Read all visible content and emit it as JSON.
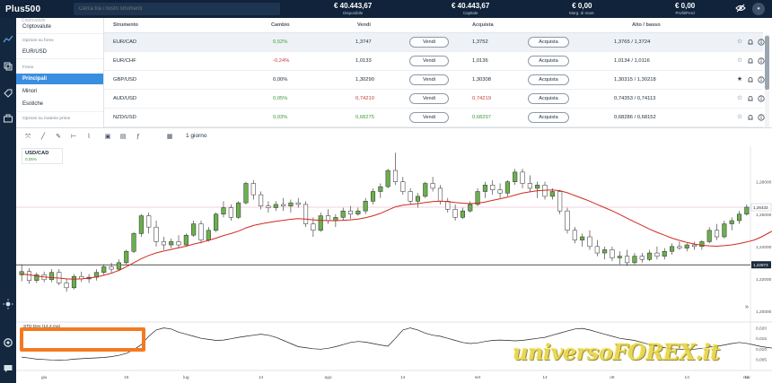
{
  "header": {
    "logo": "Plus500",
    "search_placeholder": "Cerca tra i nostri strumenti",
    "stats": [
      {
        "value": "€ 40.443,67",
        "label": "Disponibile"
      },
      {
        "value": "€ 40.443,67",
        "label": "Capitale"
      },
      {
        "value": "€ 0,00",
        "label": "Marg. di mant."
      },
      {
        "value": "€ 0,00",
        "label": "Profit/Perd"
      }
    ],
    "icons": [
      "eye-off-icon",
      "profile-icon"
    ]
  },
  "sidebar": {
    "icons": [
      "chart-icon",
      "exchange-icon",
      "tag-icon",
      "briefcase-icon",
      "brightness-icon",
      "settings-icon",
      "chat-icon"
    ]
  },
  "category_menu": {
    "ghost_label": "Criptovalute",
    "items": [
      {
        "type": "item",
        "label": "Criptovalute"
      },
      {
        "type": "head",
        "label": "Opzioni su forex"
      },
      {
        "type": "item",
        "label": "EUR/USD"
      },
      {
        "type": "head",
        "label": "Forex"
      },
      {
        "type": "item",
        "label": "Principali",
        "selected": true
      },
      {
        "type": "item",
        "label": "Minori"
      },
      {
        "type": "item",
        "label": "Esotiche"
      },
      {
        "type": "head",
        "label": "Opzioni su materie prime"
      }
    ]
  },
  "table": {
    "columns": [
      "Strumento",
      "Cambio",
      "Vendi",
      "Acquista",
      "Alto / basso"
    ],
    "sell_label": "Vendi",
    "buy_label": "Acquista",
    "rows": [
      {
        "name": "EUR/CAD",
        "change": "0,52%",
        "dir": "pos",
        "sell": "1,3747",
        "sell_dir": "none",
        "buy": "1,3752",
        "buy_dir": "none",
        "highlow": "1,3765 / 1,3724",
        "starred": false
      },
      {
        "name": "EUR/CHF",
        "change": "-0,24%",
        "dir": "neg",
        "sell": "1,0133",
        "sell_dir": "none",
        "buy": "1,0136",
        "buy_dir": "none",
        "highlow": "1,0134 / 1,0116",
        "starred": false
      },
      {
        "name": "GBP/USD",
        "change": "0,00%",
        "dir": "zero",
        "sell": "1,30290",
        "sell_dir": "none",
        "buy": "1,30308",
        "buy_dir": "none",
        "highlow": "1,30315 / 1,30218",
        "starred": true
      },
      {
        "name": "AUD/USD",
        "change": "0,05%",
        "dir": "pos",
        "sell": "0,74210",
        "sell_dir": "neg",
        "buy": "0,74219",
        "buy_dir": "neg",
        "highlow": "0,74353 / 0,74113",
        "starred": false
      },
      {
        "name": "NZD/USD",
        "change": "0,03%",
        "dir": "pos",
        "sell": "0,68275",
        "sell_dir": "pos",
        "buy": "0,68297",
        "buy_dir": "pos",
        "highlow": "0,68286 / 0,68152",
        "starred": false
      }
    ],
    "row_icons": [
      "star-icon",
      "bell-icon",
      "info-icon"
    ]
  },
  "chart": {
    "toolbar_icons": [
      "crosshair-icon",
      "line-icon",
      "pencil-icon",
      "range-icon",
      "zigzag-icon",
      "save-icon",
      "layout-icon",
      "function-icon",
      "calendar-icon"
    ],
    "period": "1 giorno",
    "instrument": "USD/CAD",
    "instrument_change": "0,05%",
    "indicator_label": "STD Dev (14,2,ma)",
    "price_labels": [
      "1,28000",
      "1,26000",
      "1,24000",
      "1,22000",
      "1,20000"
    ],
    "std_labels": [
      "0,020",
      "0,015",
      "0,010",
      "0,005"
    ],
    "current_price": "1,26433",
    "ref_price": "1,22873",
    "x_labels": [
      "giu",
      "15",
      "lug",
      "14",
      "ago",
      "14",
      "set",
      "14",
      "ott",
      "14",
      "nov",
      "14"
    ],
    "watermark": "universoFOREX.it"
  },
  "chart_data": {
    "type": "candlestick",
    "instrument": "USD/CAD",
    "timeframe": "1 giorno",
    "ylim": [
      1.195,
      1.302
    ],
    "candles": [
      [
        1.2225,
        1.229,
        1.2185,
        1.2245
      ],
      [
        1.2245,
        1.2265,
        1.217,
        1.219
      ],
      [
        1.219,
        1.224,
        1.2175,
        1.2225
      ],
      [
        1.2225,
        1.2245,
        1.218,
        1.2195
      ],
      [
        1.2195,
        1.226,
        1.218,
        1.224
      ],
      [
        1.224,
        1.226,
        1.216,
        1.2175
      ],
      [
        1.2175,
        1.22,
        1.212,
        1.2145
      ],
      [
        1.2145,
        1.223,
        1.2135,
        1.2215
      ],
      [
        1.2215,
        1.2245,
        1.218,
        1.22
      ],
      [
        1.22,
        1.223,
        1.2175,
        1.221
      ],
      [
        1.221,
        1.226,
        1.219,
        1.224
      ],
      [
        1.224,
        1.229,
        1.2225,
        1.2275
      ],
      [
        1.2275,
        1.23,
        1.224,
        1.226
      ],
      [
        1.226,
        1.232,
        1.225,
        1.23
      ],
      [
        1.23,
        1.238,
        1.229,
        1.237
      ],
      [
        1.237,
        1.249,
        1.236,
        1.248
      ],
      [
        1.248,
        1.26,
        1.246,
        1.259
      ],
      [
        1.259,
        1.261,
        1.248,
        1.252
      ],
      [
        1.252,
        1.256,
        1.24,
        1.243
      ],
      [
        1.243,
        1.246,
        1.238,
        1.241
      ],
      [
        1.241,
        1.245,
        1.239,
        1.243
      ],
      [
        1.243,
        1.247,
        1.239,
        1.241
      ],
      [
        1.241,
        1.248,
        1.24,
        1.247
      ],
      [
        1.247,
        1.256,
        1.246,
        1.254
      ],
      [
        1.254,
        1.256,
        1.242,
        1.244
      ],
      [
        1.244,
        1.252,
        1.243,
        1.25
      ],
      [
        1.25,
        1.261,
        1.249,
        1.26
      ],
      [
        1.26,
        1.268,
        1.258,
        1.264
      ],
      [
        1.264,
        1.266,
        1.256,
        1.258
      ],
      [
        1.258,
        1.268,
        1.257,
        1.267
      ],
      [
        1.267,
        1.28,
        1.266,
        1.279
      ],
      [
        1.279,
        1.281,
        1.269,
        1.272
      ],
      [
        1.272,
        1.274,
        1.263,
        1.265
      ],
      [
        1.265,
        1.268,
        1.261,
        1.264
      ],
      [
        1.264,
        1.268,
        1.262,
        1.266
      ],
      [
        1.266,
        1.27,
        1.262,
        1.265
      ],
      [
        1.265,
        1.269,
        1.261,
        1.267
      ],
      [
        1.267,
        1.27,
        1.264,
        1.266
      ],
      [
        1.266,
        1.268,
        1.252,
        1.254
      ],
      [
        1.254,
        1.258,
        1.246,
        1.25
      ],
      [
        1.25,
        1.261,
        1.249,
        1.259
      ],
      [
        1.259,
        1.263,
        1.254,
        1.256
      ],
      [
        1.256,
        1.26,
        1.252,
        1.258
      ],
      [
        1.258,
        1.264,
        1.256,
        1.262
      ],
      [
        1.262,
        1.265,
        1.257,
        1.26
      ],
      [
        1.26,
        1.264,
        1.259,
        1.262
      ],
      [
        1.262,
        1.27,
        1.26,
        1.268
      ],
      [
        1.268,
        1.276,
        1.266,
        1.274
      ],
      [
        1.274,
        1.279,
        1.27,
        1.277
      ],
      [
        1.277,
        1.288,
        1.276,
        1.287
      ],
      [
        1.287,
        1.298,
        1.278,
        1.28
      ],
      [
        1.28,
        1.283,
        1.272,
        1.274
      ],
      [
        1.274,
        1.276,
        1.266,
        1.268
      ],
      [
        1.268,
        1.273,
        1.264,
        1.271
      ],
      [
        1.271,
        1.28,
        1.27,
        1.279
      ],
      [
        1.279,
        1.283,
        1.274,
        1.276
      ],
      [
        1.276,
        1.278,
        1.266,
        1.268
      ],
      [
        1.268,
        1.27,
        1.261,
        1.263
      ],
      [
        1.263,
        1.266,
        1.256,
        1.258
      ],
      [
        1.258,
        1.264,
        1.257,
        1.262
      ],
      [
        1.262,
        1.268,
        1.261,
        1.266
      ],
      [
        1.266,
        1.276,
        1.265,
        1.274
      ],
      [
        1.274,
        1.28,
        1.27,
        1.278
      ],
      [
        1.278,
        1.281,
        1.272,
        1.275
      ],
      [
        1.275,
        1.279,
        1.27,
        1.273
      ],
      [
        1.273,
        1.281,
        1.271,
        1.28
      ],
      [
        1.28,
        1.288,
        1.278,
        1.286
      ],
      [
        1.286,
        1.288,
        1.276,
        1.279
      ],
      [
        1.279,
        1.284,
        1.274,
        1.276
      ],
      [
        1.276,
        1.28,
        1.27,
        1.278
      ],
      [
        1.278,
        1.28,
        1.269,
        1.271
      ],
      [
        1.271,
        1.276,
        1.269,
        1.274
      ],
      [
        1.274,
        1.275,
        1.26,
        1.262
      ],
      [
        1.262,
        1.264,
        1.248,
        1.25
      ],
      [
        1.25,
        1.252,
        1.242,
        1.244
      ],
      [
        1.244,
        1.248,
        1.24,
        1.246
      ],
      [
        1.246,
        1.25,
        1.238,
        1.24
      ],
      [
        1.24,
        1.244,
        1.234,
        1.236
      ],
      [
        1.236,
        1.24,
        1.232,
        1.238
      ],
      [
        1.238,
        1.24,
        1.231,
        1.233
      ],
      [
        1.233,
        1.237,
        1.229,
        1.234
      ],
      [
        1.234,
        1.238,
        1.228,
        1.23
      ],
      [
        1.23,
        1.236,
        1.229,
        1.234
      ],
      [
        1.234,
        1.236,
        1.23,
        1.232
      ],
      [
        1.232,
        1.238,
        1.231,
        1.236
      ],
      [
        1.236,
        1.24,
        1.232,
        1.234
      ],
      [
        1.234,
        1.239,
        1.232,
        1.237
      ],
      [
        1.237,
        1.242,
        1.235,
        1.24
      ],
      [
        1.24,
        1.243,
        1.238,
        1.239
      ],
      [
        1.239,
        1.242,
        1.237,
        1.241
      ],
      [
        1.241,
        1.243,
        1.238,
        1.24
      ],
      [
        1.24,
        1.244,
        1.238,
        1.243
      ],
      [
        1.243,
        1.252,
        1.242,
        1.25
      ],
      [
        1.25,
        1.254,
        1.244,
        1.246
      ],
      [
        1.246,
        1.256,
        1.245,
        1.254
      ],
      [
        1.254,
        1.258,
        1.25,
        1.256
      ],
      [
        1.256,
        1.262,
        1.254,
        1.26
      ],
      [
        1.26,
        1.266,
        1.259,
        1.2643
      ]
    ],
    "ma": [
      1.223,
      1.2225,
      1.2218,
      1.2212,
      1.2208,
      1.2205,
      1.22,
      1.2198,
      1.22,
      1.2205,
      1.2212,
      1.2222,
      1.2235,
      1.2252,
      1.2275,
      1.23,
      1.2325,
      1.2345,
      1.236,
      1.2372,
      1.2382,
      1.2392,
      1.2402,
      1.2415,
      1.2425,
      1.2438,
      1.2452,
      1.2468,
      1.248,
      1.2495,
      1.2515,
      1.253,
      1.254,
      1.2548,
      1.2556,
      1.2562,
      1.2568,
      1.2572,
      1.257,
      1.2565,
      1.2562,
      1.256,
      1.256,
      1.2562,
      1.2565,
      1.257,
      1.2578,
      1.259,
      1.2605,
      1.2625,
      1.2645,
      1.2655,
      1.266,
      1.2665,
      1.2672,
      1.2678,
      1.268,
      1.2678,
      1.2672,
      1.2668,
      1.2665,
      1.2668,
      1.2675,
      1.2685,
      1.2695,
      1.2705,
      1.2718,
      1.273,
      1.2738,
      1.2745,
      1.2748,
      1.275,
      1.2745,
      1.2732,
      1.2715,
      1.2698,
      1.268,
      1.266,
      1.264,
      1.262,
      1.2598,
      1.2575,
      1.2552,
      1.253,
      1.2508,
      1.2488,
      1.247,
      1.2452,
      1.2438,
      1.2425,
      1.2415,
      1.2408,
      1.2404,
      1.2402,
      1.2405,
      1.241,
      1.2418,
      1.2428,
      1.244,
      1.246,
      1.2485,
      1.251,
      1.254
    ],
    "std": [
      0.006,
      0.0055,
      0.005,
      0.0048,
      0.0046,
      0.0045,
      0.0046,
      0.005,
      0.0052,
      0.0054,
      0.0056,
      0.0058,
      0.0062,
      0.0068,
      0.0078,
      0.0095,
      0.012,
      0.016,
      0.019,
      0.02,
      0.0195,
      0.018,
      0.017,
      0.016,
      0.015,
      0.0145,
      0.014,
      0.0142,
      0.0148,
      0.0155,
      0.016,
      0.0165,
      0.017,
      0.0165,
      0.0155,
      0.014,
      0.0125,
      0.011,
      0.0105,
      0.01,
      0.0098,
      0.0102,
      0.011,
      0.012,
      0.013,
      0.0135,
      0.0132,
      0.0125,
      0.0118,
      0.0112,
      0.015,
      0.019,
      0.02,
      0.019,
      0.0175,
      0.0165,
      0.016,
      0.015,
      0.014,
      0.013,
      0.0125,
      0.0128,
      0.0135,
      0.014,
      0.0142,
      0.014,
      0.0138,
      0.014,
      0.0145,
      0.015,
      0.0155,
      0.0165,
      0.0175,
      0.0185,
      0.0195,
      0.0198,
      0.019,
      0.018,
      0.017,
      0.016,
      0.015,
      0.0145,
      0.014,
      0.013,
      0.012,
      0.0112,
      0.0105,
      0.01,
      0.0098,
      0.0096,
      0.0098,
      0.0102,
      0.0108,
      0.0112,
      0.0118,
      0.0125,
      0.013,
      0.0126,
      0.0118,
      0.011,
      0.0105,
      0.01,
      0.0095
    ],
    "std_ylim": [
      0.003,
      0.022
    ]
  }
}
